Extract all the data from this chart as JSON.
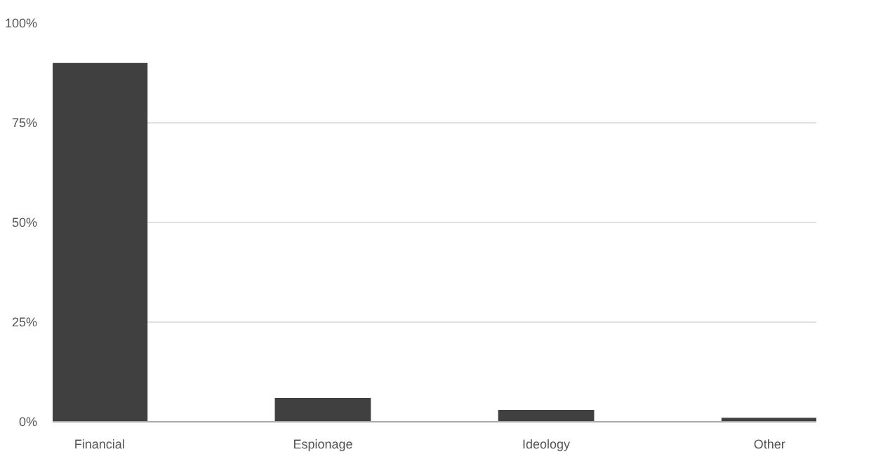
{
  "chart_data": {
    "type": "bar",
    "categories": [
      "Financial",
      "Espionage",
      "Ideology",
      "Other"
    ],
    "values": [
      90,
      6,
      3,
      1
    ],
    "color": "#404040",
    "ylim": [
      0,
      100
    ],
    "yticks": [
      {
        "value": 0,
        "label": "0%"
      },
      {
        "value": 25,
        "label": "25%"
      },
      {
        "value": 50,
        "label": "50%"
      },
      {
        "value": 75,
        "label": "75%"
      },
      {
        "value": 100,
        "label": "100%"
      }
    ],
    "grid": "y"
  }
}
